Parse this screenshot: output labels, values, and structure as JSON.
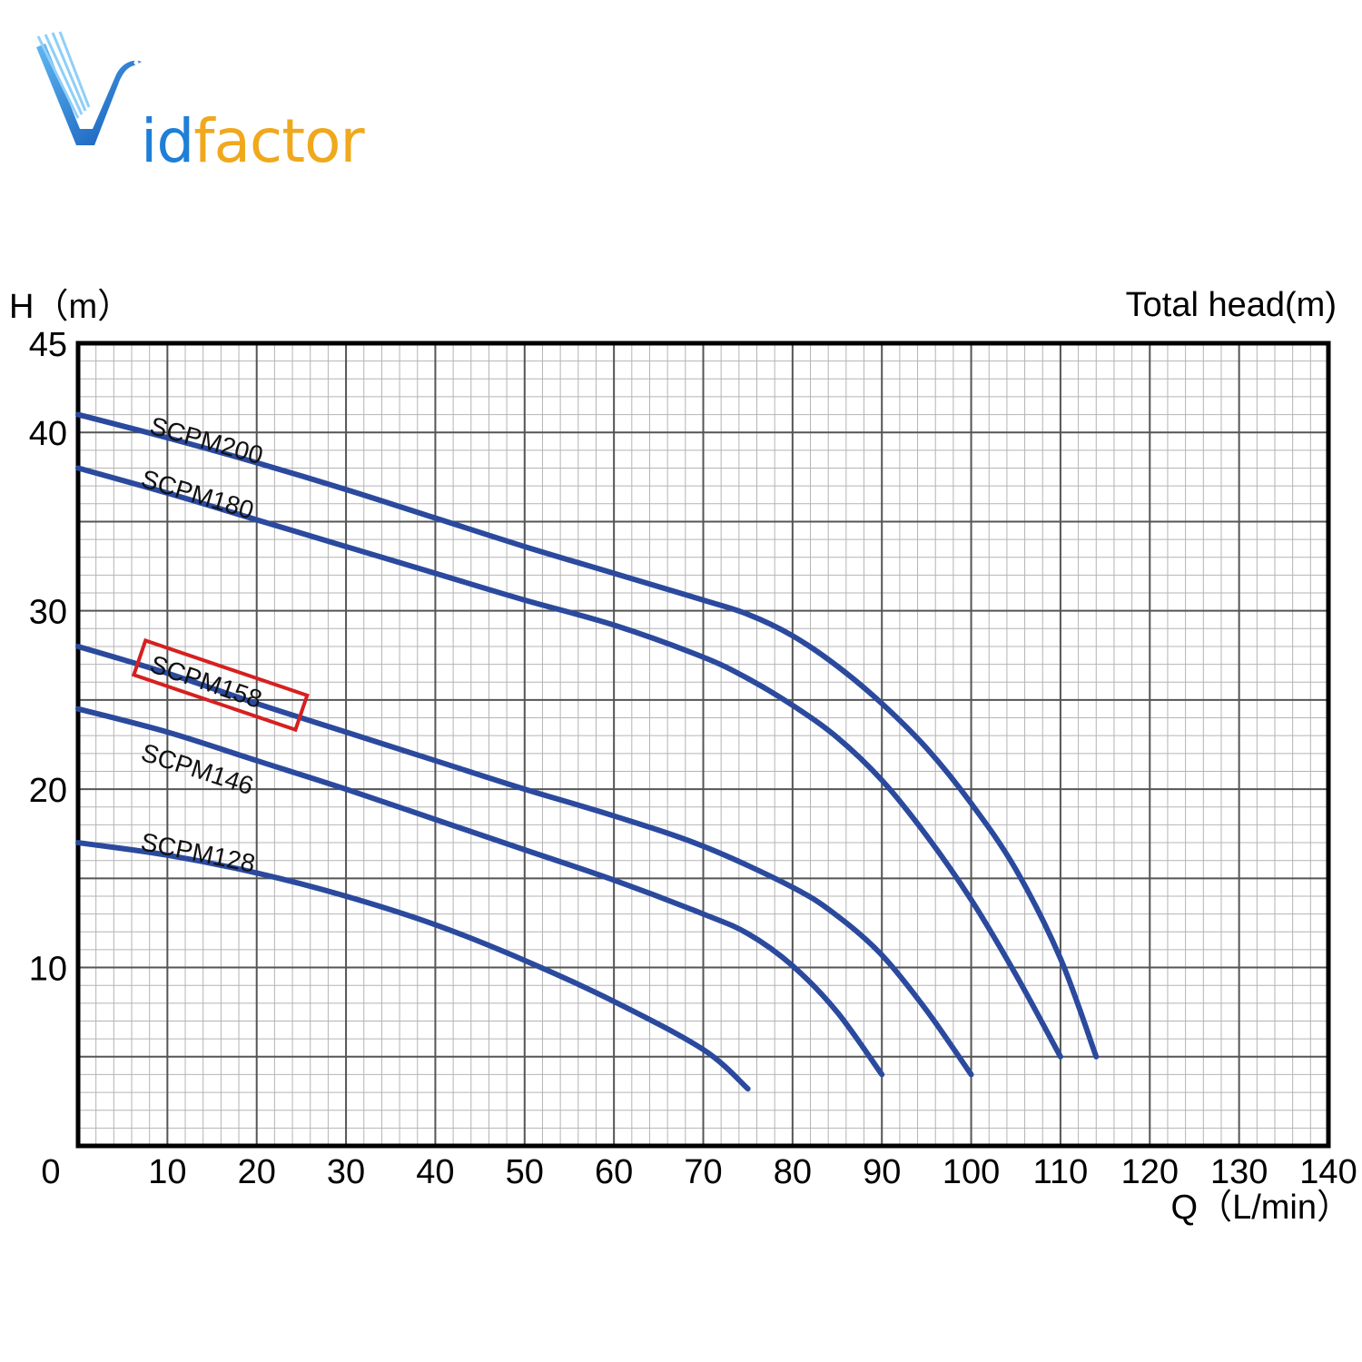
{
  "logo": {
    "text_i": "id",
    "text_rest": "factor",
    "colors": {
      "blue": "#1f7fd6",
      "orange": "#f0a81c"
    }
  },
  "chart_data": {
    "type": "line",
    "title": "Total head(m)",
    "ylabel": "H（m）",
    "xlabel": "Q（L/min）",
    "xlim": [
      0,
      140
    ],
    "ylim": [
      0,
      45
    ],
    "x_ticks": [
      0,
      10,
      20,
      30,
      40,
      50,
      60,
      70,
      80,
      90,
      100,
      110,
      120,
      130,
      140
    ],
    "y_ticks": [
      10,
      20,
      30,
      40,
      45
    ],
    "grid": true,
    "line_color": "#2b4a9e",
    "highlight_color": "#d62020",
    "series": [
      {
        "name": "SCPM200",
        "x": [
          0,
          10,
          20,
          30,
          40,
          50,
          60,
          70,
          75,
          80,
          85,
          90,
          95,
          100,
          105,
          110,
          114
        ],
        "y": [
          41,
          39.7,
          38.3,
          36.8,
          35.2,
          33.6,
          32.1,
          30.6,
          29.8,
          28.6,
          26.9,
          24.8,
          22.3,
          19.2,
          15.5,
          10.5,
          5
        ]
      },
      {
        "name": "SCPM180",
        "x": [
          0,
          10,
          20,
          30,
          40,
          50,
          60,
          70,
          75,
          80,
          85,
          90,
          95,
          100,
          105,
          110
        ],
        "y": [
          38,
          36.6,
          35.1,
          33.6,
          32.1,
          30.6,
          29.2,
          27.4,
          26.2,
          24.7,
          22.9,
          20.5,
          17.4,
          13.8,
          9.6,
          5
        ]
      },
      {
        "name": "SCPM158",
        "x": [
          0,
          10,
          20,
          30,
          40,
          50,
          60,
          70,
          80,
          85,
          90,
          95,
          100
        ],
        "y": [
          28,
          26.5,
          24.8,
          23.2,
          21.6,
          20,
          18.5,
          16.8,
          14.5,
          12.9,
          10.7,
          7.6,
          4
        ]
      },
      {
        "name": "SCPM146",
        "x": [
          0,
          10,
          20,
          30,
          40,
          50,
          60,
          70,
          75,
          80,
          85,
          90
        ],
        "y": [
          24.5,
          23.2,
          21.6,
          20,
          18.3,
          16.6,
          14.9,
          13,
          11.9,
          10.1,
          7.5,
          4
        ]
      },
      {
        "name": "SCPM128",
        "x": [
          0,
          10,
          20,
          30,
          40,
          50,
          60,
          70,
          75
        ],
        "y": [
          17,
          16.3,
          15.3,
          14,
          12.4,
          10.4,
          8.1,
          5.4,
          3.2
        ]
      }
    ],
    "highlighted_series": "SCPM158"
  }
}
